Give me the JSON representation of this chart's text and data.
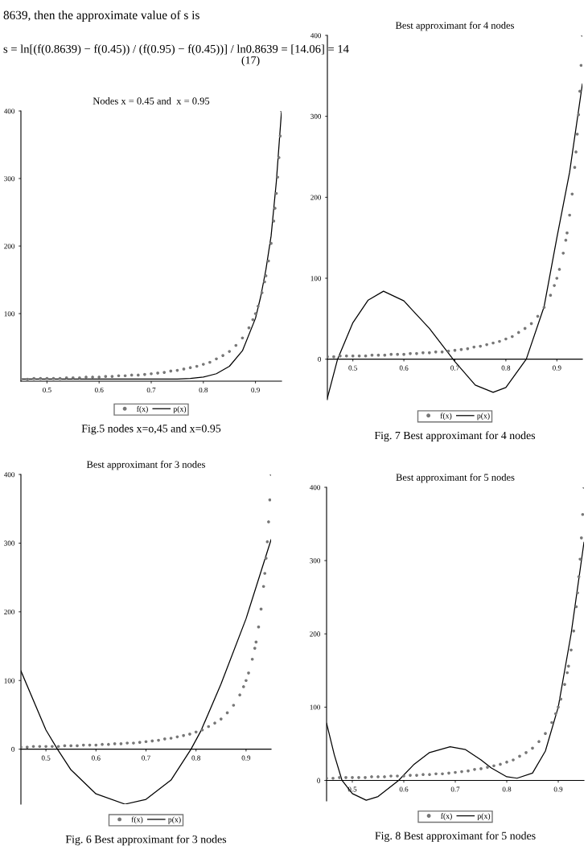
{
  "chart_data": [
    {
      "type": "scatter",
      "title": "Nodes x = 0.45 and  x = 0.95",
      "xlim": [
        0.45,
        0.95
      ],
      "ylim": [
        0,
        400
      ],
      "xticks": [
        0.5,
        0.6,
        0.7,
        0.8,
        0.9
      ],
      "yticks": [
        100,
        200,
        300,
        400
      ],
      "legend": "bottom",
      "grid": false,
      "annotations": [
        "8639, then the approximate value of s is",
        "s = ln[(f(0.8639) − f(0.45)) / (f(0.95) − f(0.45))] / ln0.8639 = [14.06] = 14",
        "(17)",
        "Fig.5 nodes x=o,45 and x=0.95"
      ],
      "series": [
        {
          "name": "f(x)",
          "marker": "circle",
          "color": "#777777",
          "x": [
            0.45,
            0.4625,
            0.475,
            0.4875,
            0.5,
            0.5125,
            0.525,
            0.5375,
            0.55,
            0.5625,
            0.575,
            0.5875,
            0.6,
            0.6125,
            0.625,
            0.6375,
            0.65,
            0.6625,
            0.675,
            0.6875,
            0.7,
            0.7125,
            0.725,
            0.7375,
            0.75,
            0.7625,
            0.775,
            0.7875,
            0.8,
            0.8125,
            0.825,
            0.8375,
            0.85,
            0.8625,
            0.875,
            0.8875,
            0.895,
            0.9,
            0.905,
            0.9125,
            0.9175,
            0.92,
            0.925,
            0.93,
            0.935,
            0.9375,
            0.94,
            0.9425,
            0.945,
            0.9475,
            0.95
          ],
          "values": [
            3,
            3,
            4,
            4,
            4,
            4,
            4,
            5,
            5,
            5,
            6,
            6,
            6,
            7,
            7,
            8,
            8,
            9,
            9,
            10,
            11,
            12,
            13,
            15,
            16,
            18,
            20,
            22,
            25,
            28,
            33,
            38,
            44,
            53,
            64,
            79,
            91,
            100,
            111,
            131,
            147,
            156,
            178,
            204,
            237,
            256,
            278,
            302,
            331,
            363,
            400
          ]
        },
        {
          "name": "p(x)",
          "type": "line",
          "color": "#000000",
          "x": [
            0.45,
            0.5,
            0.6,
            0.7,
            0.75,
            0.775,
            0.8,
            0.825,
            0.85,
            0.875,
            0.9,
            0.91,
            0.92,
            0.93,
            0.94,
            0.95
          ],
          "values": [
            3,
            3,
            3,
            3,
            3,
            4,
            6,
            11,
            22,
            45,
            93,
            125,
            165,
            215,
            295,
            400
          ]
        }
      ]
    },
    {
      "type": "scatter",
      "title": "Best approximant for 4 nodes",
      "xlim": [
        0.45,
        0.95
      ],
      "ylim": [
        -50,
        400
      ],
      "xticks": [
        0.5,
        0.6,
        0.7,
        0.8,
        0.9
      ],
      "yticks": [
        0,
        100,
        200,
        300,
        400
      ],
      "legend": "bottom",
      "grid": false,
      "annotations": [
        "Fig. 7 Best approximant for 4 nodes"
      ],
      "series": [
        {
          "name": "f(x)",
          "marker": "circle",
          "color": "#777777",
          "x": [
            0.45,
            0.4625,
            0.475,
            0.4875,
            0.5,
            0.5125,
            0.525,
            0.5375,
            0.55,
            0.5625,
            0.575,
            0.5875,
            0.6,
            0.6125,
            0.625,
            0.6375,
            0.65,
            0.6625,
            0.675,
            0.6875,
            0.7,
            0.7125,
            0.725,
            0.7375,
            0.75,
            0.7625,
            0.775,
            0.7875,
            0.8,
            0.8125,
            0.825,
            0.8375,
            0.85,
            0.8625,
            0.875,
            0.8875,
            0.895,
            0.9,
            0.905,
            0.9125,
            0.9175,
            0.92,
            0.925,
            0.93,
            0.935,
            0.9375,
            0.94,
            0.9425,
            0.945,
            0.9475,
            0.95
          ],
          "values": [
            3,
            3,
            4,
            4,
            4,
            4,
            4,
            5,
            5,
            5,
            6,
            6,
            6,
            7,
            7,
            8,
            8,
            9,
            9,
            10,
            11,
            12,
            13,
            15,
            16,
            18,
            20,
            22,
            25,
            28,
            33,
            38,
            44,
            53,
            64,
            79,
            91,
            100,
            111,
            131,
            147,
            156,
            178,
            204,
            237,
            256,
            278,
            302,
            331,
            363,
            400
          ]
        },
        {
          "name": "p(x)",
          "type": "line",
          "color": "#000000",
          "x": [
            0.45,
            0.47,
            0.5,
            0.53,
            0.56,
            0.6,
            0.65,
            0.7,
            0.74,
            0.775,
            0.8,
            0.84,
            0.875,
            0.9,
            0.925,
            0.95
          ],
          "values": [
            -48,
            0,
            45,
            73,
            84,
            72,
            38,
            -3,
            -32,
            -41,
            -35,
            0,
            65,
            150,
            231,
            340
          ]
        }
      ]
    },
    {
      "type": "scatter",
      "title": "Best approximant for 3 nodes",
      "xlim": [
        0.45,
        0.95
      ],
      "ylim": [
        -80,
        400
      ],
      "xticks": [
        0.5,
        0.6,
        0.7,
        0.8,
        0.9
      ],
      "yticks": [
        0,
        100,
        200,
        300,
        400
      ],
      "legend": "bottom",
      "grid": false,
      "annotations": [
        "Fig. 6 Best approximant for 3 nodes"
      ],
      "series": [
        {
          "name": "f(x)",
          "marker": "circle",
          "color": "#777777",
          "x": [
            0.45,
            0.4625,
            0.475,
            0.4875,
            0.5,
            0.5125,
            0.525,
            0.5375,
            0.55,
            0.5625,
            0.575,
            0.5875,
            0.6,
            0.6125,
            0.625,
            0.6375,
            0.65,
            0.6625,
            0.675,
            0.6875,
            0.7,
            0.7125,
            0.725,
            0.7375,
            0.75,
            0.7625,
            0.775,
            0.7875,
            0.8,
            0.8125,
            0.825,
            0.8375,
            0.85,
            0.8625,
            0.875,
            0.8875,
            0.895,
            0.9,
            0.905,
            0.9125,
            0.9175,
            0.92,
            0.925,
            0.93,
            0.935,
            0.9375,
            0.94,
            0.9425,
            0.945,
            0.9475,
            0.95
          ],
          "values": [
            3,
            3,
            4,
            4,
            4,
            4,
            4,
            5,
            5,
            5,
            6,
            6,
            6,
            7,
            7,
            8,
            8,
            9,
            9,
            10,
            11,
            12,
            13,
            15,
            16,
            18,
            20,
            22,
            25,
            28,
            33,
            38,
            44,
            53,
            64,
            79,
            91,
            100,
            111,
            131,
            147,
            156,
            178,
            204,
            237,
            256,
            278,
            302,
            331,
            363,
            400
          ]
        },
        {
          "name": "p(x)",
          "type": "line",
          "color": "#000000",
          "x": [
            0.45,
            0.5,
            0.523,
            0.55,
            0.6,
            0.658,
            0.7,
            0.75,
            0.79,
            0.81,
            0.85,
            0.9,
            0.95
          ],
          "values": [
            114,
            28,
            0,
            -30,
            -65,
            -80,
            -73,
            -45,
            0,
            27,
            95,
            190,
            305
          ]
        }
      ]
    },
    {
      "type": "scatter",
      "title": "Best approximant for 5 nodes",
      "xlim": [
        0.45,
        0.95
      ],
      "ylim": [
        -28,
        400
      ],
      "xticks": [
        0.5,
        0.6,
        0.7,
        0.8,
        0.9
      ],
      "yticks": [
        0,
        100,
        200,
        300,
        400
      ],
      "legend": "bottom",
      "grid": false,
      "annotations": [
        "Fig. 8 Best approximant for 5 nodes"
      ],
      "series": [
        {
          "name": "f(x)",
          "marker": "circle",
          "color": "#777777",
          "x": [
            0.45,
            0.4625,
            0.475,
            0.4875,
            0.5,
            0.5125,
            0.525,
            0.5375,
            0.55,
            0.5625,
            0.575,
            0.5875,
            0.6,
            0.6125,
            0.625,
            0.6375,
            0.65,
            0.6625,
            0.675,
            0.6875,
            0.7,
            0.7125,
            0.725,
            0.7375,
            0.75,
            0.7625,
            0.775,
            0.7875,
            0.8,
            0.8125,
            0.825,
            0.8375,
            0.85,
            0.8625,
            0.875,
            0.8875,
            0.895,
            0.9,
            0.905,
            0.9125,
            0.9175,
            0.92,
            0.925,
            0.93,
            0.935,
            0.9375,
            0.94,
            0.9425,
            0.945,
            0.9475,
            0.95
          ],
          "values": [
            3,
            3,
            4,
            4,
            4,
            4,
            4,
            5,
            5,
            5,
            6,
            6,
            6,
            7,
            7,
            8,
            8,
            9,
            9,
            10,
            11,
            12,
            13,
            15,
            16,
            18,
            20,
            22,
            25,
            28,
            33,
            38,
            44,
            53,
            64,
            79,
            91,
            100,
            111,
            131,
            147,
            156,
            178,
            204,
            237,
            256,
            278,
            302,
            331,
            363,
            400
          ]
        },
        {
          "name": "p(x)",
          "type": "line",
          "color": "#000000",
          "x": [
            0.45,
            0.465,
            0.48,
            0.5,
            0.527,
            0.55,
            0.59,
            0.62,
            0.65,
            0.69,
            0.72,
            0.75,
            0.77,
            0.8,
            0.82,
            0.85,
            0.875,
            0.9,
            0.925,
            0.95
          ],
          "values": [
            78,
            35,
            0,
            -18,
            -27,
            -22,
            0,
            22,
            38,
            46,
            42,
            28,
            17,
            5,
            3,
            10,
            40,
            100,
            200,
            325
          ]
        }
      ]
    }
  ]
}
